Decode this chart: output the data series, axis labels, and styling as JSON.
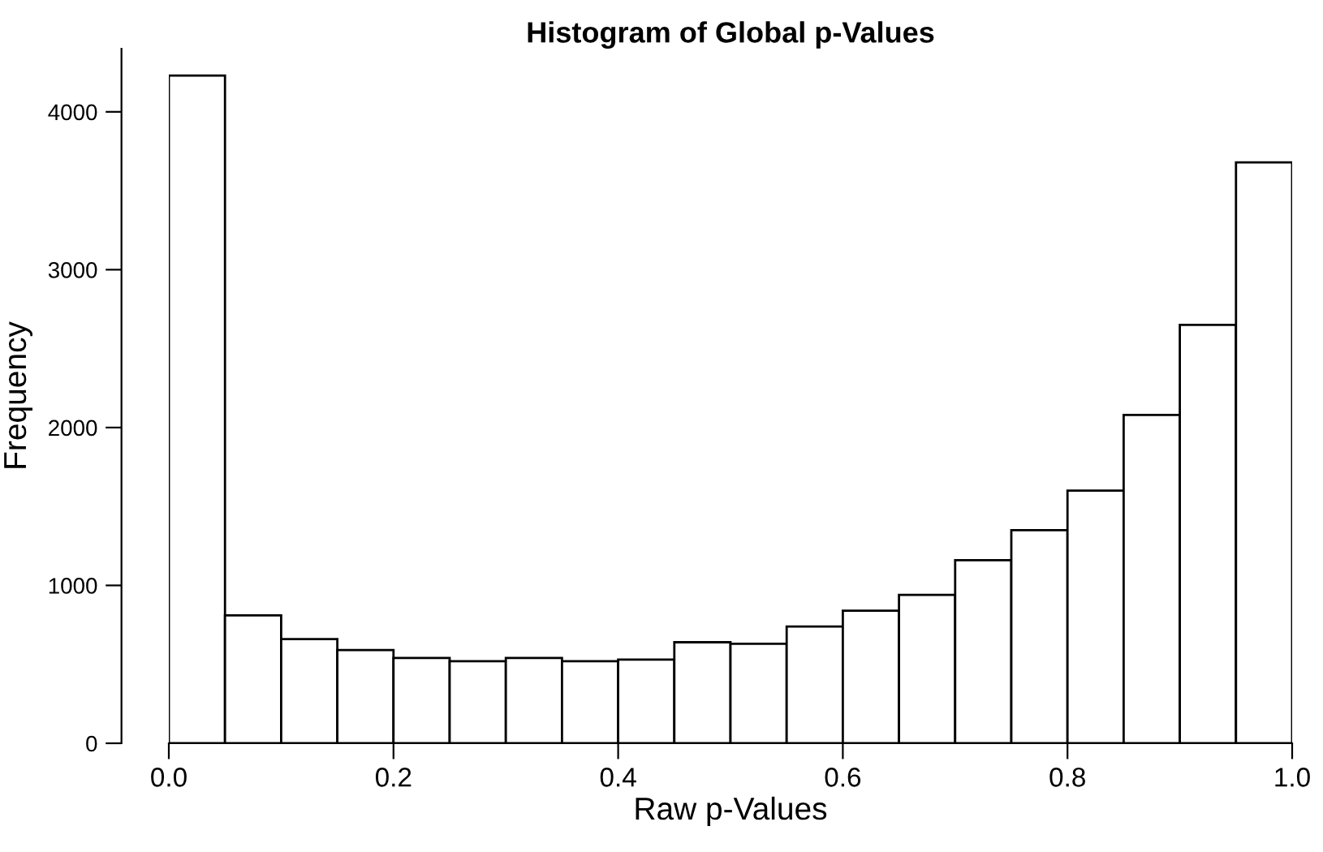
{
  "chart_data": {
    "type": "histogram",
    "title": "Histogram of Global p-Values",
    "xlabel": "Raw p-Values",
    "ylabel": "Frequency",
    "bins": [
      0.0,
      0.05,
      0.1,
      0.15,
      0.2,
      0.25,
      0.3,
      0.35,
      0.4,
      0.45,
      0.5,
      0.55,
      0.6,
      0.65,
      0.7,
      0.75,
      0.8,
      0.85,
      0.9,
      0.95,
      1.0
    ],
    "values": [
      4230,
      810,
      660,
      590,
      540,
      520,
      540,
      520,
      530,
      640,
      630,
      740,
      840,
      940,
      1160,
      1350,
      1600,
      2080,
      2650,
      3680
    ],
    "color": "#ffffff",
    "xlim": [
      0.0,
      1.0
    ],
    "ylim": [
      0,
      4400
    ],
    "xticks": [
      {
        "value": 0.0,
        "label": "0.0"
      },
      {
        "value": 0.2,
        "label": "0.2"
      },
      {
        "value": 0.4,
        "label": "0.4"
      },
      {
        "value": 0.6,
        "label": "0.6"
      },
      {
        "value": 0.8,
        "label": "0.8"
      },
      {
        "value": 1.0,
        "label": "1.0"
      }
    ],
    "yticks": [
      0,
      1000,
      2000,
      3000,
      4000
    ],
    "grid": false
  }
}
